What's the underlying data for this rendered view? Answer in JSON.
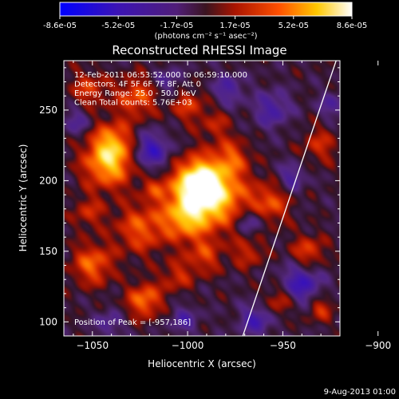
{
  "colorbar": {
    "tick_labels": [
      "-8.6e-05",
      "-5.2e-05",
      "-1.7e-05",
      "1.7e-05",
      "5.2e-05",
      "8.6e-05"
    ],
    "unit_label": "(photons cm⁻² s⁻¹ asec⁻²)"
  },
  "chart_data": {
    "type": "heatmap",
    "title": "Reconstructed RHESSI Image",
    "xlabel": "Heliocentric X (arcsec)",
    "ylabel": "Heliocentric Y (arcsec)",
    "xlim": [
      -1065,
      -920
    ],
    "ylim": [
      90,
      285
    ],
    "x_ticks": [
      -1050,
      -1000,
      -950,
      -900
    ],
    "y_ticks": [
      100,
      150,
      200,
      250
    ],
    "x_tick_labels": [
      "−1050",
      "−1000",
      "−950",
      "−900"
    ],
    "y_tick_labels": [
      "100",
      "150",
      "200",
      "250"
    ],
    "colorbar_range": [
      -8.6e-05,
      8.6e-05
    ],
    "colormap": "rhessi-blue-purple-red-yellow-white",
    "limb_line": [
      [
        -971,
        90
      ],
      [
        -922,
        285
      ]
    ],
    "peak": [
      -957,
      186
    ],
    "annotations": [
      "12-Feb-2011 06:53:52.000 to 06:59:10.000",
      "Detectors: 4F 5F 6F 7F 8F, Att 0",
      "Energy Range: 25.0 - 50.0 keV",
      "Clean     Total counts: 5.76E+03"
    ],
    "peak_label": "Position of Peak = [-957,186]"
  },
  "footer": {
    "date": "9-Aug-2013 01:00"
  }
}
